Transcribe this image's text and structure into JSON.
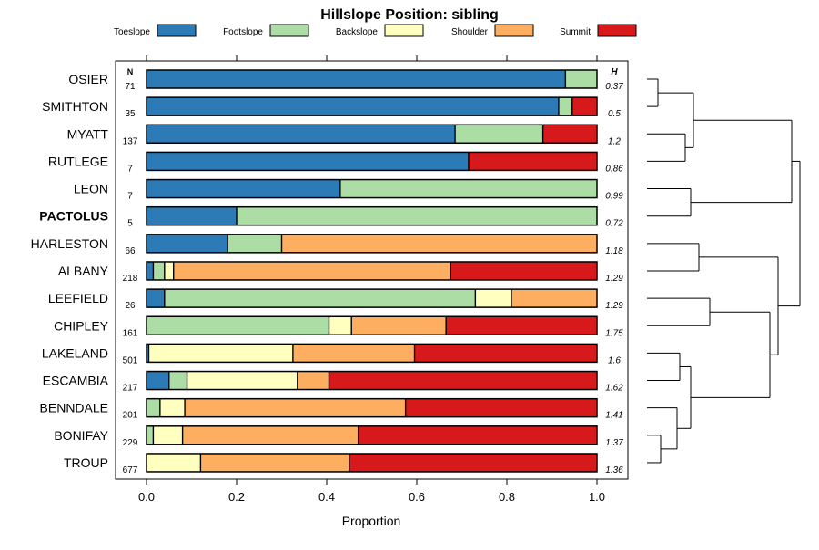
{
  "chart_data": {
    "type": "bar",
    "stacked": true,
    "orientation": "horizontal",
    "title": "Hillslope Position: sibling",
    "xlabel": "Proportion",
    "xlim": [
      0,
      1
    ],
    "x_ticks": [
      "0.0",
      "0.2",
      "0.4",
      "0.6",
      "0.8",
      "1.0"
    ],
    "n_header": "N",
    "h_header": "H",
    "legend_position": "top",
    "highlighted_category": "PACTOLUS",
    "series": [
      {
        "name": "Toeslope",
        "color": "#2c7bb6",
        "values": [
          0.93,
          0.915,
          0.685,
          0.715,
          0.43,
          0.2,
          0.18,
          0.015,
          0.04,
          0.0,
          0.005,
          0.05,
          0.0,
          0.0,
          0.0
        ]
      },
      {
        "name": "Footslope",
        "color": "#abdda4",
        "values": [
          0.07,
          0.03,
          0.195,
          0.0,
          0.57,
          0.8,
          0.12,
          0.025,
          0.69,
          0.405,
          0.0,
          0.04,
          0.03,
          0.015,
          0.0
        ]
      },
      {
        "name": "Backslope",
        "color": "#ffffbf",
        "values": [
          0.0,
          0.0,
          0.0,
          0.0,
          0.0,
          0.0,
          0.0,
          0.02,
          0.08,
          0.05,
          0.32,
          0.245,
          0.055,
          0.065,
          0.12
        ]
      },
      {
        "name": "Shoulder",
        "color": "#fdae61",
        "values": [
          0.0,
          0.0,
          0.0,
          0.0,
          0.0,
          0.0,
          0.7,
          0.615,
          0.19,
          0.21,
          0.27,
          0.07,
          0.49,
          0.39,
          0.33
        ]
      },
      {
        "name": "Summit",
        "color": "#d7191c",
        "values": [
          0.0,
          0.055,
          0.12,
          0.285,
          0.0,
          0.0,
          0.0,
          0.325,
          0.0,
          0.335,
          0.405,
          0.595,
          0.425,
          0.53,
          0.55
        ]
      }
    ],
    "categories": [
      {
        "name": "OSIER",
        "n": "71",
        "h": "0.37"
      },
      {
        "name": "SMITHTON",
        "n": "35",
        "h": "0.5"
      },
      {
        "name": "MYATT",
        "n": "137",
        "h": "1.2"
      },
      {
        "name": "RUTLEGE",
        "n": "7",
        "h": "0.86"
      },
      {
        "name": "LEON",
        "n": "7",
        "h": "0.99"
      },
      {
        "name": "PACTOLUS",
        "n": "5",
        "h": "0.72"
      },
      {
        "name": "HARLESTON",
        "n": "66",
        "h": "1.18"
      },
      {
        "name": "ALBANY",
        "n": "218",
        "h": "1.29"
      },
      {
        "name": "LEEFIELD",
        "n": "26",
        "h": "1.29"
      },
      {
        "name": "CHIPLEY",
        "n": "161",
        "h": "1.75"
      },
      {
        "name": "LAKELAND",
        "n": "501",
        "h": "1.6"
      },
      {
        "name": "ESCAMBIA",
        "n": "217",
        "h": "1.62"
      },
      {
        "name": "BENNDALE",
        "n": "201",
        "h": "1.41"
      },
      {
        "name": "BONIFAY",
        "n": "229",
        "h": "1.37"
      },
      {
        "name": "TROUP",
        "n": "677",
        "h": "1.36"
      }
    ],
    "dendrogram": {
      "leaf_order": [
        "OSIER",
        "SMITHTON",
        "MYATT",
        "RUTLEGE",
        "LEON",
        "PACTOLUS",
        "HARLESTON",
        "ALBANY",
        "LEEFIELD",
        "CHIPLEY",
        "LAKELAND",
        "ESCAMBIA",
        "BENNDALE",
        "BONIFAY",
        "TROUP"
      ],
      "merges": [
        {
          "id": "c1",
          "children": [
            "OSIER",
            "SMITHTON"
          ],
          "height": 0.04
        },
        {
          "id": "c2",
          "children": [
            "MYATT",
            "RUTLEGE"
          ],
          "height": 0.14
        },
        {
          "id": "c3",
          "children": [
            "c1",
            "c2"
          ],
          "height": 0.17
        },
        {
          "id": "c4",
          "children": [
            "LEON",
            "PACTOLUS"
          ],
          "height": 0.16
        },
        {
          "id": "c5",
          "children": [
            "c3",
            "c4"
          ],
          "height": 0.53
        },
        {
          "id": "c6",
          "children": [
            "HARLESTON",
            "ALBANY"
          ],
          "height": 0.19
        },
        {
          "id": "c7",
          "children": [
            "LEEFIELD",
            "CHIPLEY"
          ],
          "height": 0.23
        },
        {
          "id": "c8",
          "children": [
            "LAKELAND",
            "ESCAMBIA"
          ],
          "height": 0.12
        },
        {
          "id": "c9",
          "children": [
            "BONIFAY",
            "TROUP"
          ],
          "height": 0.05
        },
        {
          "id": "c10",
          "children": [
            "BENNDALE",
            "c9"
          ],
          "height": 0.11
        },
        {
          "id": "c11",
          "children": [
            "c8",
            "c10"
          ],
          "height": 0.16
        },
        {
          "id": "c12",
          "children": [
            "c7",
            "c11"
          ],
          "height": 0.45
        },
        {
          "id": "c13",
          "children": [
            "c6",
            "c12"
          ],
          "height": 0.48
        },
        {
          "id": "c14",
          "children": [
            "c5",
            "c13"
          ],
          "height": 0.56
        }
      ]
    }
  }
}
